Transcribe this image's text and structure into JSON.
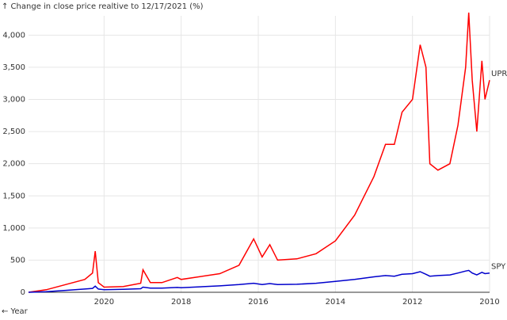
{
  "chart_data": {
    "type": "line",
    "title": "↑ Change in close price realtive to 12/17/2021 (%)",
    "x_label": "← Year",
    "xlim": [
      2021.96,
      2010
    ],
    "xticks": [
      2020,
      2018,
      2016,
      2014,
      2012,
      2010
    ],
    "ylim": [
      0,
      4300
    ],
    "yticks": [
      0,
      500,
      {
        "value": 1000,
        "label": "1,000"
      },
      {
        "value": 1500,
        "label": "1,500"
      },
      {
        "value": 2000,
        "label": "2,000"
      },
      {
        "value": 2500,
        "label": "2,500"
      },
      {
        "value": 3000,
        "label": "3,000"
      },
      {
        "value": 3500,
        "label": "3,500"
      },
      {
        "value": 4000,
        "label": "4,000"
      }
    ],
    "grid": true,
    "x": [
      2021.96,
      2021.5,
      2021,
      2020.5,
      2020.3,
      2020.23,
      2020.15,
      2020,
      2019.5,
      2019.05,
      2018.99,
      2018.8,
      2018.5,
      2018.1,
      2018,
      2017,
      2016.5,
      2016.12,
      2015.9,
      2015.7,
      2015.5,
      2015,
      2014.5,
      2014,
      2013.5,
      2013,
      2012.7,
      2012.47,
      2012.27,
      2012,
      2011.8,
      2011.65,
      2011.55,
      2011.34,
      2011.03,
      2010.82,
      2010.62,
      2010.54,
      2010.45,
      2010.33,
      2010.2,
      2010.12,
      2010
    ],
    "series": [
      {
        "name": "UPRO",
        "color": "#ff0000",
        "values": [
          0,
          40,
          120,
          200,
          300,
          640,
          150,
          80,
          90,
          140,
          350,
          150,
          150,
          230,
          200,
          290,
          420,
          830,
          550,
          740,
          500,
          520,
          600,
          800,
          1200,
          1800,
          2300,
          2300,
          2800,
          3000,
          3850,
          3500,
          2000,
          1900,
          2000,
          2600,
          3500,
          4350,
          3300,
          2500,
          3600,
          3000,
          3300
        ]
      },
      {
        "name": "SPY",
        "color": "#0000cc",
        "values": [
          0,
          10,
          30,
          50,
          60,
          95,
          50,
          40,
          45,
          55,
          80,
          65,
          65,
          75,
          70,
          100,
          120,
          140,
          120,
          135,
          120,
          125,
          140,
          170,
          200,
          240,
          260,
          250,
          280,
          290,
          320,
          280,
          250,
          260,
          270,
          300,
          330,
          340,
          300,
          270,
          310,
          290,
          300
        ]
      }
    ]
  }
}
